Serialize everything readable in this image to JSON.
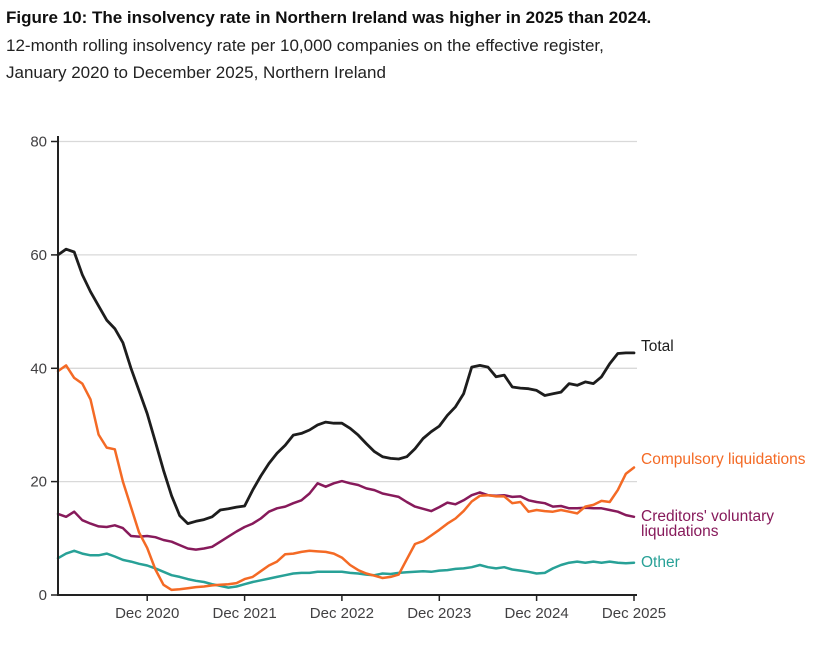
{
  "header": {
    "title": "Figure 10: The insolvency rate in Northern Ireland was higher in 2025 than 2024.",
    "subtitle_line1": "12-month rolling insolvency rate per 10,000 companies on the effective register,",
    "subtitle_line2": "January 2020 to December 2025, Northern Ireland"
  },
  "chart_data": {
    "type": "line",
    "title": "Figure 10: The insolvency rate in Northern Ireland was higher in 2025 than 2024.",
    "subtitle": "12-month rolling insolvency rate per 10,000 companies on the effective register, January 2020 to December 2025, Northern Ireland",
    "x_start": "Jan 2020",
    "x_end": "Dec 2025",
    "x_tick_labels": [
      "Dec 2020",
      "Dec 2021",
      "Dec 2022",
      "Dec 2023",
      "Dec 2024",
      "Dec 2025"
    ],
    "y_ticks": [
      0,
      20,
      40,
      60,
      80
    ],
    "ylim": [
      0,
      80
    ],
    "grid": "horizontal",
    "legend_position": "direct-labels-right",
    "colors": {
      "axis": "#222222",
      "gridline": "#d9d9d9",
      "tick_label": "#414042",
      "total": "#1d1d1d",
      "compulsory": "#f46a25",
      "creditors_voluntary": "#871a5b",
      "other": "#28a197"
    },
    "series": [
      {
        "name": "Total",
        "label_lines": [
          "Total"
        ],
        "color": "#1d1d1d",
        "values": [
          60.0,
          61.0,
          60.5,
          56.5,
          53.5,
          51.0,
          48.5,
          47.0,
          44.5,
          40.0,
          36.0,
          32.0,
          27.0,
          22.0,
          17.5,
          14.0,
          12.6,
          13.0,
          13.3,
          13.8,
          15.0,
          15.2,
          15.5,
          15.7,
          18.5,
          21.0,
          23.2,
          25.0,
          26.4,
          28.2,
          28.5,
          29.1,
          30.0,
          30.5,
          30.3,
          30.3,
          29.4,
          28.2,
          26.7,
          25.3,
          24.4,
          24.1,
          24.0,
          24.4,
          25.8,
          27.6,
          28.8,
          29.8,
          31.7,
          33.2,
          35.5,
          40.2,
          40.5,
          40.2,
          38.5,
          38.8,
          36.7,
          36.5,
          36.4,
          36.1,
          35.2,
          35.5,
          35.8,
          37.3,
          37.0,
          37.6,
          37.3,
          38.5,
          40.8,
          42.6,
          42.7,
          42.7
        ]
      },
      {
        "name": "Compulsory liquidations",
        "label_lines": [
          "Compulsory liquidations"
        ],
        "color": "#f46a25",
        "values": [
          39.5,
          40.5,
          38.3,
          37.3,
          34.5,
          28.3,
          26.0,
          25.7,
          20.0,
          15.5,
          11.0,
          8.3,
          4.5,
          1.8,
          0.9,
          1.0,
          1.2,
          1.4,
          1.5,
          1.7,
          1.8,
          1.9,
          2.1,
          2.8,
          3.2,
          4.2,
          5.2,
          5.9,
          7.2,
          7.3,
          7.6,
          7.8,
          7.7,
          7.6,
          7.3,
          6.6,
          5.3,
          4.4,
          3.8,
          3.4,
          3.0,
          3.2,
          3.6,
          6.3,
          9.0,
          9.5,
          10.5,
          11.5,
          12.6,
          13.5,
          14.8,
          16.5,
          17.5,
          17.6,
          17.4,
          17.4,
          16.2,
          16.4,
          14.7,
          15.0,
          14.8,
          14.7,
          15.0,
          14.7,
          14.4,
          15.6,
          15.9,
          16.6,
          16.4,
          18.5,
          21.4,
          22.5
        ]
      },
      {
        "name": "Creditors' voluntary liquidations",
        "label_lines": [
          "Creditors' voluntary",
          "liquidations"
        ],
        "color": "#871a5b",
        "values": [
          14.3,
          13.8,
          14.7,
          13.2,
          12.6,
          12.1,
          12.0,
          12.3,
          11.8,
          10.4,
          10.3,
          10.4,
          10.2,
          9.7,
          9.4,
          8.8,
          8.2,
          8.0,
          8.2,
          8.5,
          9.4,
          10.3,
          11.2,
          12.0,
          12.6,
          13.5,
          14.7,
          15.3,
          15.6,
          16.2,
          16.7,
          17.9,
          19.7,
          19.1,
          19.7,
          20.1,
          19.7,
          19.4,
          18.8,
          18.5,
          17.9,
          17.6,
          17.3,
          16.4,
          15.6,
          15.2,
          14.8,
          15.5,
          16.3,
          16.0,
          16.7,
          17.6,
          18.1,
          17.6,
          17.5,
          17.6,
          17.3,
          17.4,
          16.7,
          16.4,
          16.2,
          15.6,
          15.7,
          15.3,
          15.3,
          15.4,
          15.3,
          15.3,
          15.0,
          14.7,
          14.1,
          13.8
        ]
      },
      {
        "name": "Other",
        "label_lines": [
          "Other"
        ],
        "color": "#28a197",
        "values": [
          6.5,
          7.3,
          7.8,
          7.3,
          7.0,
          7.0,
          7.3,
          6.8,
          6.2,
          5.9,
          5.5,
          5.2,
          4.7,
          4.1,
          3.5,
          3.2,
          2.8,
          2.5,
          2.3,
          1.9,
          1.6,
          1.3,
          1.5,
          1.9,
          2.3,
          2.6,
          2.9,
          3.2,
          3.5,
          3.8,
          3.9,
          3.9,
          4.1,
          4.1,
          4.1,
          4.1,
          3.9,
          3.8,
          3.6,
          3.5,
          3.8,
          3.7,
          3.9,
          4.0,
          4.1,
          4.2,
          4.1,
          4.3,
          4.4,
          4.6,
          4.7,
          4.9,
          5.3,
          4.9,
          4.7,
          4.9,
          4.5,
          4.3,
          4.1,
          3.8,
          3.9,
          4.7,
          5.3,
          5.7,
          5.9,
          5.7,
          5.9,
          5.7,
          5.9,
          5.7,
          5.6,
          5.7
        ]
      }
    ]
  }
}
